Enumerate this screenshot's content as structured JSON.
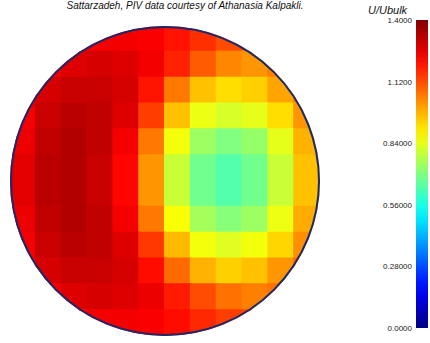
{
  "chart_data": {
    "type": "heatmap",
    "title": "Sattarzadeh, PIV data courtesy of Athanasia Kalpakli.",
    "x": [
      -0.917,
      -0.75,
      -0.583,
      -0.417,
      -0.25,
      -0.083,
      0.083,
      0.25,
      0.417,
      0.583,
      0.75,
      0.917
    ],
    "y": [
      0.917,
      0.75,
      0.583,
      0.417,
      0.25,
      0.083,
      -0.083,
      -0.25,
      -0.417,
      -0.583,
      -0.75,
      -0.917
    ],
    "values": [
      [
        null,
        null,
        1.22,
        1.24,
        1.24,
        1.23,
        1.2,
        1.16,
        1.12,
        1.1,
        null,
        null
      ],
      [
        null,
        1.24,
        1.27,
        1.28,
        1.27,
        1.24,
        1.18,
        1.1,
        1.04,
        1.02,
        1.05,
        null
      ],
      [
        1.22,
        1.28,
        1.3,
        1.3,
        1.28,
        1.2,
        1.06,
        0.96,
        0.92,
        0.94,
        1.0,
        1.06
      ],
      [
        1.24,
        1.3,
        1.32,
        1.31,
        1.27,
        1.14,
        0.96,
        0.85,
        0.82,
        0.84,
        0.92,
        1.02
      ],
      [
        1.25,
        1.31,
        1.33,
        1.31,
        1.24,
        1.06,
        0.86,
        0.74,
        0.7,
        0.73,
        0.84,
        0.98
      ],
      [
        1.26,
        1.32,
        1.33,
        1.3,
        1.22,
        1.02,
        0.8,
        0.68,
        0.64,
        0.68,
        0.8,
        0.96
      ],
      [
        1.26,
        1.32,
        1.33,
        1.3,
        1.22,
        1.02,
        0.8,
        0.68,
        0.64,
        0.68,
        0.8,
        0.96
      ],
      [
        1.25,
        1.31,
        1.33,
        1.31,
        1.24,
        1.06,
        0.87,
        0.75,
        0.71,
        0.74,
        0.85,
        0.99
      ],
      [
        1.24,
        1.3,
        1.32,
        1.31,
        1.27,
        1.15,
        0.97,
        0.86,
        0.83,
        0.86,
        0.93,
        1.03
      ],
      [
        1.22,
        1.28,
        1.3,
        1.3,
        1.28,
        1.21,
        1.08,
        0.98,
        0.94,
        0.96,
        1.02,
        1.08
      ],
      [
        null,
        1.24,
        1.27,
        1.28,
        1.27,
        1.25,
        1.19,
        1.12,
        1.07,
        1.05,
        1.07,
        null
      ],
      [
        null,
        null,
        1.22,
        1.24,
        1.24,
        1.23,
        1.21,
        1.17,
        1.14,
        1.12,
        null,
        null
      ]
    ],
    "xlim": [
      -1,
      1
    ],
    "ylim": [
      -1,
      1
    ],
    "tick_labels": false,
    "colorbar": {
      "label": "U/Ubulk",
      "range": [
        0,
        1.4
      ],
      "ticks": [
        {
          "value": 1.4,
          "label": "1.4000"
        },
        {
          "value": 1.12,
          "label": "1.1200"
        },
        {
          "value": 0.84,
          "label": "0.84000"
        },
        {
          "value": 0.56,
          "label": "0.56000"
        },
        {
          "value": 0.28,
          "label": "0.28000"
        },
        {
          "value": 0,
          "label": "0.0000"
        }
      ]
    }
  }
}
